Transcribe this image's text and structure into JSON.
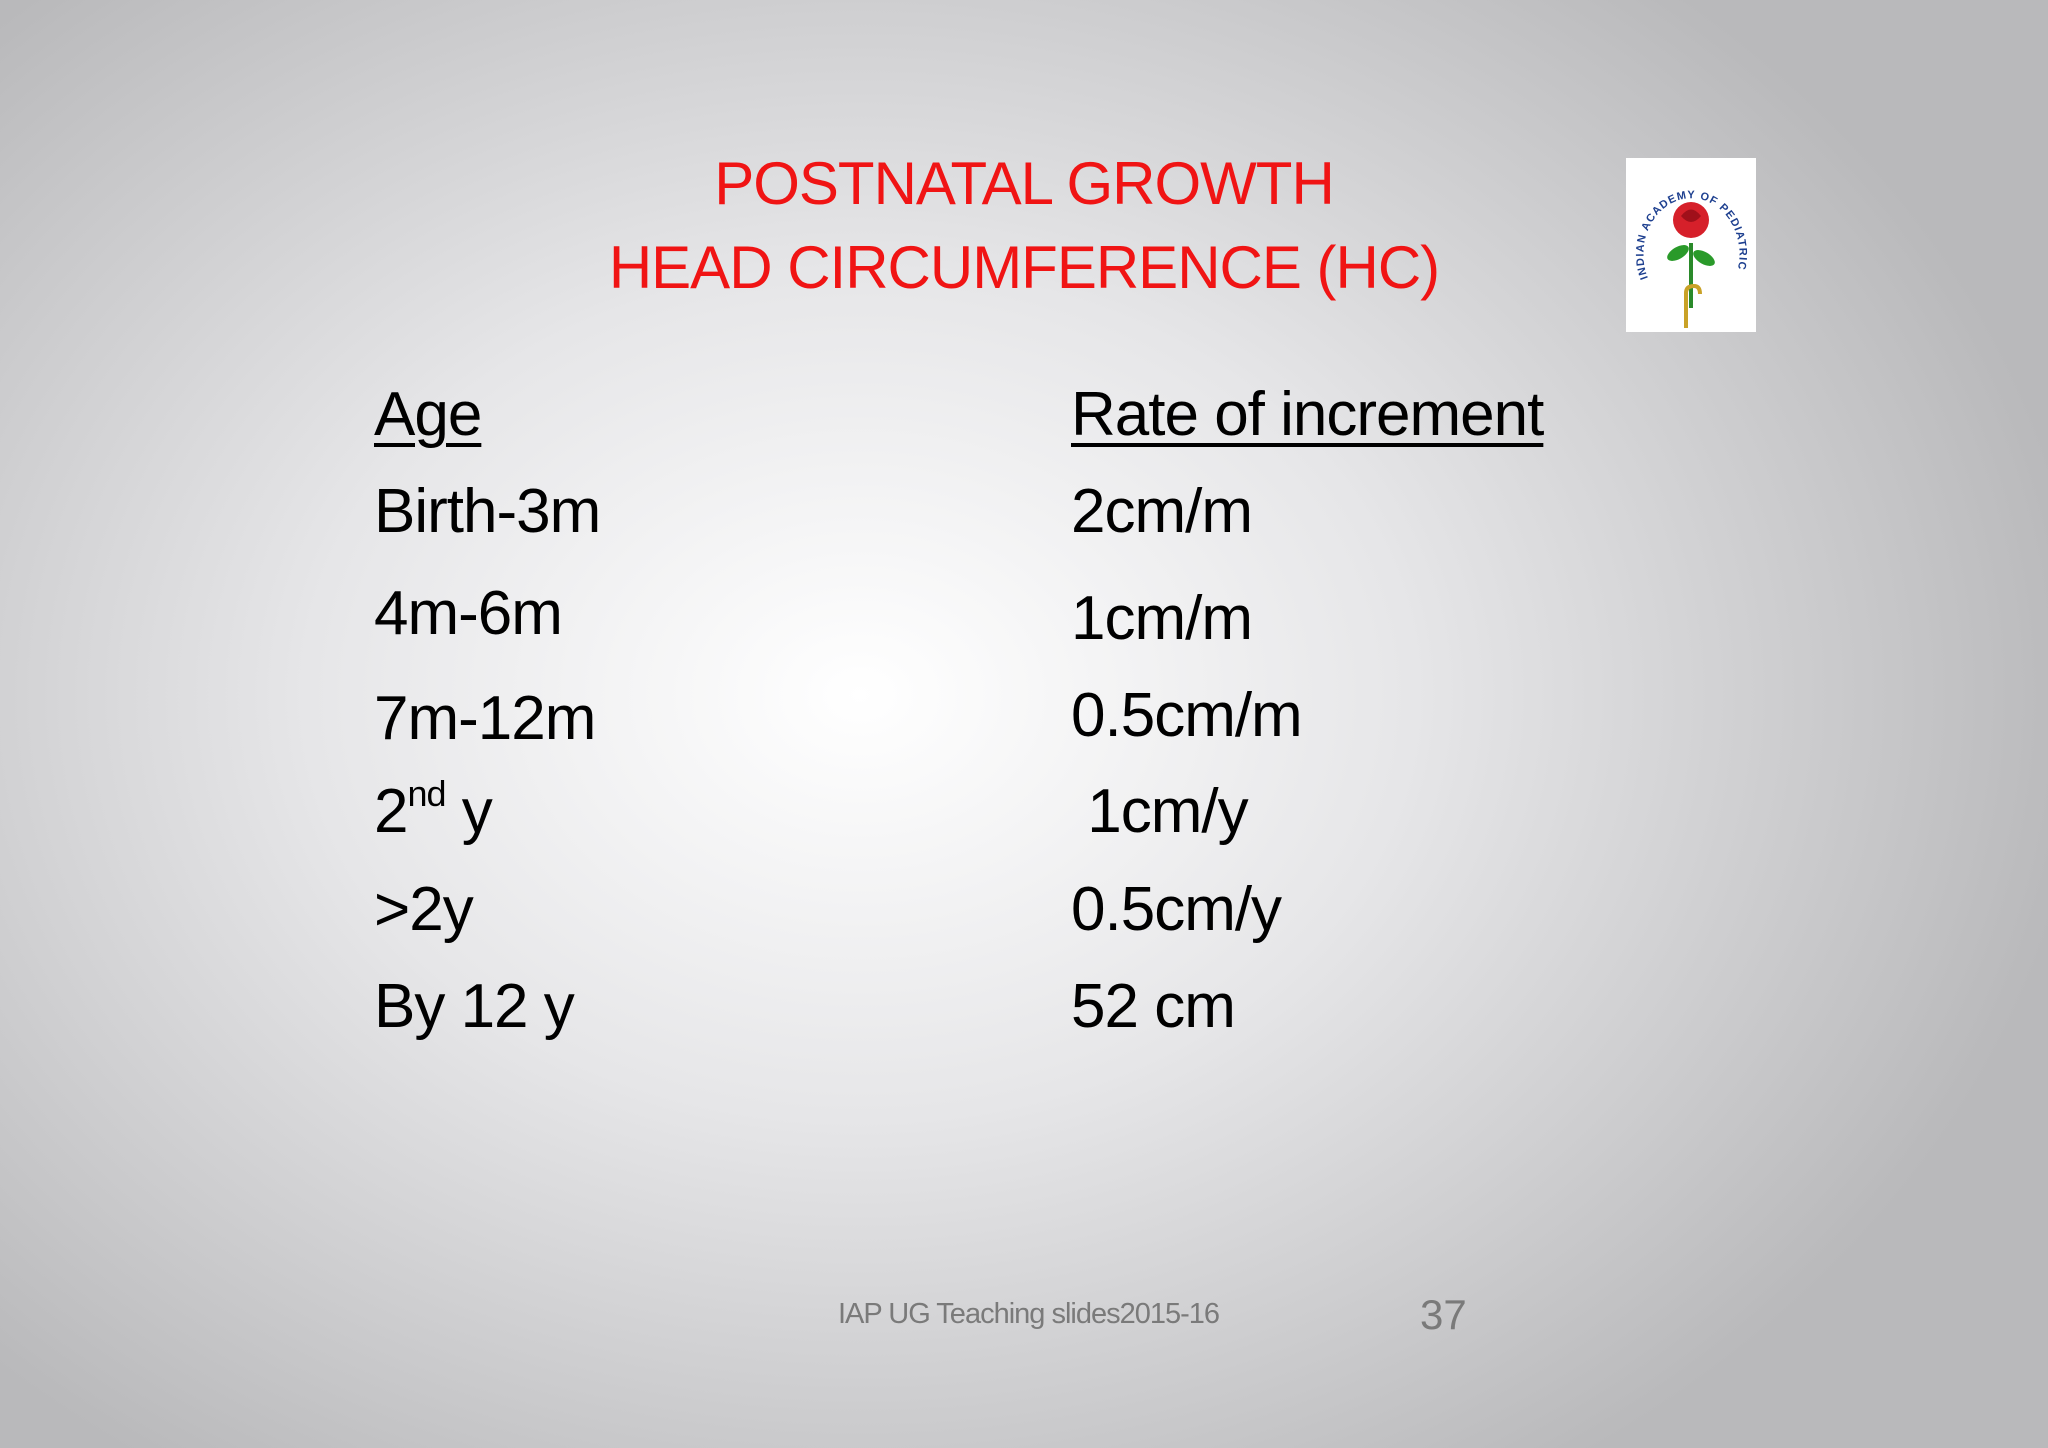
{
  "title": {
    "line1": "POSTNATAL GROWTH",
    "line2": "HEAD CIRCUMFERENCE (HC)"
  },
  "logo": {
    "text": "INDIAN ACADEMY OF PEDIATRICS"
  },
  "table": {
    "header": [
      "Age",
      "Rate of increment"
    ],
    "rows": [
      [
        "Birth-3m",
        "2cm/m"
      ],
      [
        "4m-6m",
        "1cm/m"
      ],
      [
        "7m-12m",
        "0.5cm/m"
      ],
      [
        {
          "base": "2",
          "sup": "nd",
          "rest": " y"
        },
        " 1cm/y"
      ],
      [
        ">2y",
        "0.5cm/y"
      ],
      [
        "By 12 y",
        "52 cm"
      ]
    ]
  },
  "footer": {
    "text": "IAP UG Teaching slides2015-16",
    "page": "37"
  }
}
